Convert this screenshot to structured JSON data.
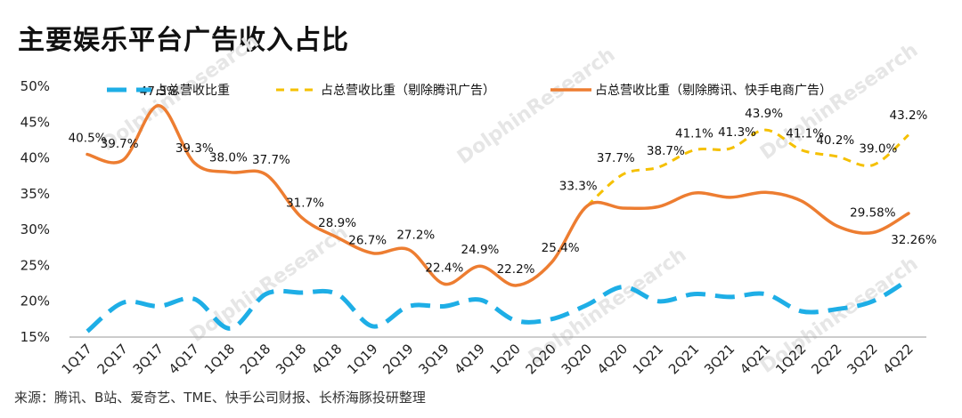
{
  "title": "主要娱乐平台广告收入占比",
  "source": "来源：腾讯、B站、爱奇艺、TME、快手公司财报、长桥海豚投研整理",
  "watermark": "DolphinResearch",
  "chart_data": {
    "type": "line",
    "categories": [
      "1Q17",
      "2Q17",
      "3Q17",
      "4Q17",
      "1Q18",
      "2Q18",
      "3Q18",
      "4Q18",
      "1Q19",
      "2Q19",
      "3Q19",
      "4Q19",
      "1Q20",
      "2Q20",
      "3Q20",
      "4Q20",
      "1Q21",
      "2Q21",
      "3Q21",
      "4Q21",
      "1Q22",
      "2Q22",
      "3Q22",
      "4Q22"
    ],
    "ylim": [
      15,
      50
    ],
    "yticks": [
      15,
      20,
      25,
      30,
      35,
      40,
      45,
      50
    ],
    "ytick_labels": [
      "15%",
      "20%",
      "25%",
      "30%",
      "35%",
      "40%",
      "45%",
      "50%"
    ],
    "legend_position": "top",
    "series": [
      {
        "name": "占总营收比重",
        "color": "#1eaee6",
        "dash": "long",
        "values": [
          15.8,
          19.8,
          19.3,
          20.3,
          16.2,
          21.0,
          21.2,
          21.0,
          16.5,
          19.3,
          19.3,
          20.2,
          17.3,
          17.5,
          19.5,
          22.0,
          20.0,
          21.0,
          20.6,
          21.0,
          18.6,
          18.9,
          20.0,
          23.0
        ],
        "labels": []
      },
      {
        "name": "占总营收比重（剔除腾讯广告）",
        "color": "#f5c000",
        "dash": "short",
        "values": [
          null,
          null,
          null,
          null,
          null,
          null,
          null,
          null,
          null,
          null,
          null,
          null,
          null,
          null,
          33.3,
          37.7,
          38.7,
          41.1,
          41.3,
          43.9,
          41.1,
          40.2,
          39.0,
          43.2
        ],
        "labels": [
          "",
          "",
          "",
          "",
          "",
          "",
          "",
          "",
          "",
          "",
          "",
          "",
          "",
          "",
          "",
          "37.7%",
          "38.7%",
          "41.1%",
          "41.3%",
          "43.9%",
          "41.1%",
          "40.2%",
          "39.0%",
          "43.2%"
        ]
      },
      {
        "name": "占总营收比重（剔除腾讯、快手电商广告）",
        "color": "#ed7d31",
        "dash": "solid",
        "values": [
          40.5,
          39.7,
          47.3,
          39.3,
          38.0,
          37.7,
          31.7,
          28.9,
          26.7,
          27.2,
          22.4,
          24.9,
          22.2,
          25.4,
          33.3,
          33.0,
          33.2,
          35.1,
          34.5,
          35.2,
          34.0,
          30.5,
          29.58,
          32.26
        ],
        "labels": [
          "40.5%",
          "39.7%",
          "47.3%",
          "39.3%",
          "38.0%",
          "37.7%",
          "31.7%",
          "28.9%",
          "26.7%",
          "27.2%",
          "22.4%",
          "24.9%",
          "22.2%",
          "25.4%",
          "33.3%",
          "",
          "",
          "",
          "",
          "",
          "",
          "",
          "29.58%",
          "32.26%"
        ]
      }
    ]
  }
}
